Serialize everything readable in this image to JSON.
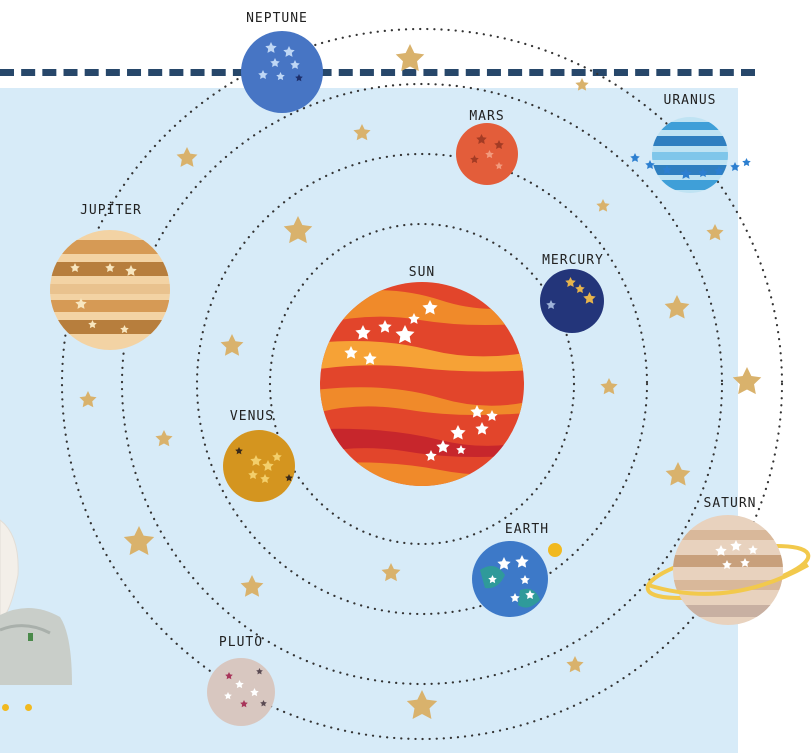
{
  "title": "",
  "planets": [
    {
      "label": "SUN"
    },
    {
      "label": "MERCURY"
    },
    {
      "label": "VENUS"
    },
    {
      "label": "EARTH"
    },
    {
      "label": "MARS"
    },
    {
      "label": "JUPİTER"
    },
    {
      "label": "SATURN"
    },
    {
      "label": "URANUS"
    },
    {
      "label": "NEPTUNE"
    },
    {
      "label": "PLUTO"
    }
  ],
  "colors": {
    "background": "#d7ebf8",
    "dashed_line": "#27476a",
    "star_gold": "#d9b26c",
    "sun": "#e2452b",
    "mercury": "#23357a",
    "venus": "#d4951f",
    "earth": "#3d79c8",
    "mars": "#e35d3a",
    "jupiter": "#e9c28e",
    "saturn": "#e8d2be",
    "uranus": "#3f9fd8",
    "neptune": "#4775c4",
    "pluto": "#d8c7c0"
  },
  "icons": [
    "star-icon",
    "dot-icon"
  ]
}
